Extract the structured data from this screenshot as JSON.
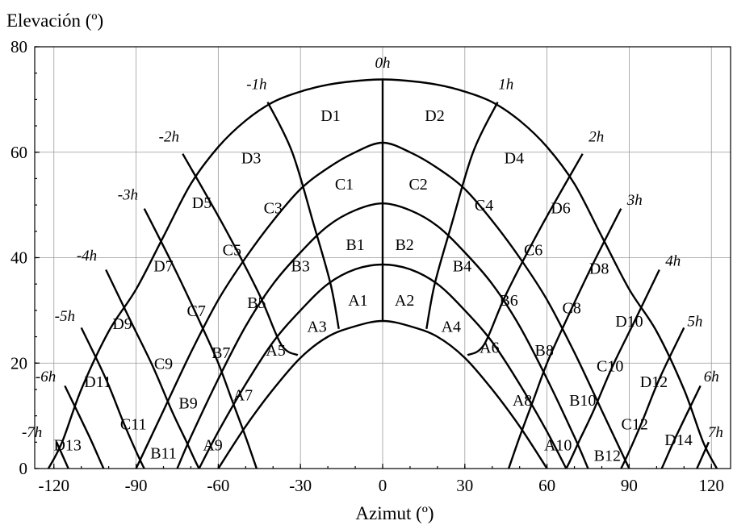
{
  "chart_data": {
    "type": "line",
    "ylabel": "Elevación (º)",
    "xlabel": "Azimut (º)",
    "xlim": [
      -127,
      127
    ],
    "ylim": [
      0,
      80
    ],
    "x_ticks": [
      -120,
      -90,
      -60,
      -30,
      0,
      30,
      60,
      90,
      120
    ],
    "y_ticks": [
      0,
      20,
      40,
      60,
      80
    ],
    "grid": true,
    "elevation_curves": [
      {
        "x": [
          -60,
          -50,
          -40,
          -30,
          -20,
          -10,
          0,
          10,
          20,
          30,
          40,
          50,
          60
        ],
        "y": [
          0,
          8,
          15,
          21,
          25,
          27,
          28,
          27,
          25,
          21,
          15,
          8,
          0
        ]
      },
      {
        "x": [
          -67,
          -60,
          -50,
          -40,
          -30,
          -20,
          -10,
          0,
          10,
          20,
          30,
          40,
          50,
          60,
          67
        ],
        "y": [
          0,
          7,
          16,
          24,
          30,
          35,
          37.8,
          38.7,
          37.8,
          35,
          30,
          24,
          16,
          7,
          0
        ]
      },
      {
        "x": [
          -75,
          -70,
          -60,
          -50,
          -40,
          -30,
          -20,
          -10,
          0,
          10,
          20,
          30,
          40,
          50,
          60,
          70,
          75
        ],
        "y": [
          0,
          6,
          17,
          27,
          35,
          41,
          46,
          49,
          50.3,
          49,
          46,
          41,
          35,
          27,
          17,
          6,
          0
        ]
      },
      {
        "x": [
          -90,
          -80,
          -70,
          -60,
          -50,
          -40,
          -30,
          -20,
          -10,
          0,
          10,
          20,
          30,
          40,
          50,
          60,
          70,
          80,
          90
        ],
        "y": [
          0,
          11,
          22,
          32,
          40,
          47,
          53,
          57,
          60,
          61.8,
          60,
          57,
          53,
          47,
          40,
          32,
          22,
          11,
          0
        ]
      },
      {
        "x": [
          -122,
          -117,
          -110,
          -100,
          -90,
          -80,
          -70,
          -60,
          -50,
          -40,
          -30,
          -20,
          -10,
          0,
          10,
          20,
          30,
          40,
          50,
          60,
          70,
          80,
          90,
          100,
          110,
          117,
          122
        ],
        "y": [
          0,
          5,
          15,
          26,
          34,
          44,
          54,
          61,
          66,
          69.5,
          71.5,
          72.8,
          73.5,
          73.8,
          73.5,
          72.8,
          71.5,
          69.5,
          66,
          61,
          54,
          44,
          34,
          26,
          15,
          5,
          0
        ]
      }
    ],
    "hour_curves": [
      {
        "label": "0h",
        "x": [
          0,
          0
        ],
        "y": [
          28,
          73.8
        ]
      },
      {
        "label": "-1h",
        "x": [
          -42,
          -33,
          -25,
          -19,
          -16
        ],
        "y": [
          69.5,
          60,
          46,
          35,
          26.5
        ]
      },
      {
        "label": "1h",
        "x": [
          42,
          33,
          25,
          19,
          16
        ],
        "y": [
          69.5,
          60,
          46,
          35,
          26.5
        ]
      },
      {
        "label": "-2h",
        "x": [
          -73,
          -58,
          -45,
          -37,
          -31
        ],
        "y": [
          59.7,
          46,
          33,
          23.5,
          21.5
        ]
      },
      {
        "label": "2h",
        "x": [
          73,
          58,
          45,
          37,
          31
        ],
        "y": [
          59.7,
          46,
          33,
          23.5,
          21.5
        ]
      },
      {
        "label": "-3h",
        "x": [
          -87,
          -76,
          -66,
          -60,
          -55,
          -50,
          -46
        ],
        "y": [
          49.3,
          38,
          27,
          20,
          13,
          6,
          0
        ]
      },
      {
        "label": "3h",
        "x": [
          87,
          76,
          66,
          60,
          55,
          50,
          46
        ],
        "y": [
          49.3,
          38,
          27,
          20,
          13,
          6,
          0
        ]
      },
      {
        "label": "-4h",
        "x": [
          -101,
          -92,
          -84,
          -77,
          -72,
          -67,
          -62
        ],
        "y": [
          37.7,
          28,
          19.5,
          11,
          5.5,
          0,
          -4
        ]
      },
      {
        "label": "4h",
        "x": [
          101,
          92,
          84,
          77,
          72,
          67,
          62
        ],
        "y": [
          37.7,
          28,
          19.5,
          11,
          5.5,
          0,
          -4
        ]
      },
      {
        "label": "-5h",
        "x": [
          -110,
          -101,
          -94,
          -87,
          -80
        ],
        "y": [
          26.7,
          17,
          8,
          0,
          -6
        ]
      },
      {
        "label": "5h",
        "x": [
          110,
          101,
          94,
          87,
          80
        ],
        "y": [
          26.7,
          17,
          8,
          0,
          -6
        ]
      },
      {
        "label": "-6h",
        "x": [
          -116,
          -107,
          -100,
          -93
        ],
        "y": [
          15.7,
          6,
          -2,
          -8
        ]
      },
      {
        "label": "6h",
        "x": [
          116,
          107,
          100,
          93
        ],
        "y": [
          15.7,
          6,
          -2,
          -8
        ]
      },
      {
        "label": "-7h",
        "x": [
          -119,
          -113,
          -108
        ],
        "y": [
          5,
          -2,
          -8
        ]
      },
      {
        "label": "7h",
        "x": [
          119,
          113,
          108
        ],
        "y": [
          5,
          -2,
          -8
        ]
      }
    ],
    "hour_labels": [
      {
        "text": "0h",
        "x": 0,
        "y": 76
      },
      {
        "text": "-1h",
        "x": -46,
        "y": 72
      },
      {
        "text": "1h",
        "x": 45,
        "y": 72
      },
      {
        "text": "-2h",
        "x": -78,
        "y": 62
      },
      {
        "text": "2h",
        "x": 78,
        "y": 62
      },
      {
        "text": "-3h",
        "x": -93,
        "y": 51
      },
      {
        "text": "3h",
        "x": 92,
        "y": 50
      },
      {
        "text": "-4h",
        "x": -108,
        "y": 39.5
      },
      {
        "text": "4h",
        "x": 106,
        "y": 38.5
      },
      {
        "text": "-5h",
        "x": -116,
        "y": 28
      },
      {
        "text": "5h",
        "x": 114,
        "y": 27
      },
      {
        "text": "-6h",
        "x": -123,
        "y": 16.5
      },
      {
        "text": "6h",
        "x": 120,
        "y": 16.5
      },
      {
        "text": "-7h",
        "x": -128,
        "y": 6
      },
      {
        "text": "7h",
        "x": 121.5,
        "y": 6
      }
    ],
    "zone_labels": [
      {
        "text": "A1",
        "x": -9,
        "y": 32
      },
      {
        "text": "A2",
        "x": 8,
        "y": 32
      },
      {
        "text": "A3",
        "x": -24,
        "y": 27
      },
      {
        "text": "A4",
        "x": 25,
        "y": 27
      },
      {
        "text": "A5",
        "x": -39,
        "y": 22.5
      },
      {
        "text": "A6",
        "x": 39,
        "y": 23
      },
      {
        "text": "A7",
        "x": -51,
        "y": 14
      },
      {
        "text": "A8",
        "x": 51,
        "y": 13
      },
      {
        "text": "A9",
        "x": -62,
        "y": 4.5
      },
      {
        "text": "A10",
        "x": 64,
        "y": 4.5
      },
      {
        "text": "B1",
        "x": -10,
        "y": 42.5
      },
      {
        "text": "B2",
        "x": 8,
        "y": 42.5
      },
      {
        "text": "B3",
        "x": -30,
        "y": 38.5
      },
      {
        "text": "B4",
        "x": 29,
        "y": 38.5
      },
      {
        "text": "B5",
        "x": -46,
        "y": 31.5
      },
      {
        "text": "B6",
        "x": 46,
        "y": 32
      },
      {
        "text": "B7",
        "x": -59,
        "y": 22
      },
      {
        "text": "B8",
        "x": 59,
        "y": 22.5
      },
      {
        "text": "B9",
        "x": -71,
        "y": 12.5
      },
      {
        "text": "B10",
        "x": 73,
        "y": 13
      },
      {
        "text": "B11",
        "x": -80,
        "y": 3
      },
      {
        "text": "B12",
        "x": 82,
        "y": 2.5
      },
      {
        "text": "C1",
        "x": -14,
        "y": 54
      },
      {
        "text": "C2",
        "x": 13,
        "y": 54
      },
      {
        "text": "C3",
        "x": -40,
        "y": 49.5
      },
      {
        "text": "C4",
        "x": 37,
        "y": 50
      },
      {
        "text": "C5",
        "x": -55,
        "y": 41.5
      },
      {
        "text": "C6",
        "x": 55,
        "y": 41.5
      },
      {
        "text": "C7",
        "x": -68,
        "y": 30
      },
      {
        "text": "C8",
        "x": 69,
        "y": 30.5
      },
      {
        "text": "C9",
        "x": -80,
        "y": 20
      },
      {
        "text": "C10",
        "x": 83,
        "y": 19.5
      },
      {
        "text": "C11",
        "x": -91,
        "y": 8.5
      },
      {
        "text": "C12",
        "x": 92,
        "y": 8.5
      },
      {
        "text": "D1",
        "x": -19,
        "y": 67
      },
      {
        "text": "D2",
        "x": 19,
        "y": 67
      },
      {
        "text": "D3",
        "x": -48,
        "y": 59
      },
      {
        "text": "D4",
        "x": 48,
        "y": 59
      },
      {
        "text": "D5",
        "x": -66,
        "y": 50.5
      },
      {
        "text": "D6",
        "x": 65,
        "y": 49.5
      },
      {
        "text": "D7",
        "x": -80,
        "y": 38.5
      },
      {
        "text": "D8",
        "x": 79,
        "y": 38
      },
      {
        "text": "D9",
        "x": -95,
        "y": 27.5
      },
      {
        "text": "D10",
        "x": 90,
        "y": 28
      },
      {
        "text": "D11",
        "x": -104,
        "y": 16.5
      },
      {
        "text": "D12",
        "x": 99,
        "y": 16.5
      },
      {
        "text": "D13",
        "x": -115,
        "y": 4.5
      },
      {
        "text": "D14",
        "x": 108,
        "y": 5.5
      }
    ]
  }
}
